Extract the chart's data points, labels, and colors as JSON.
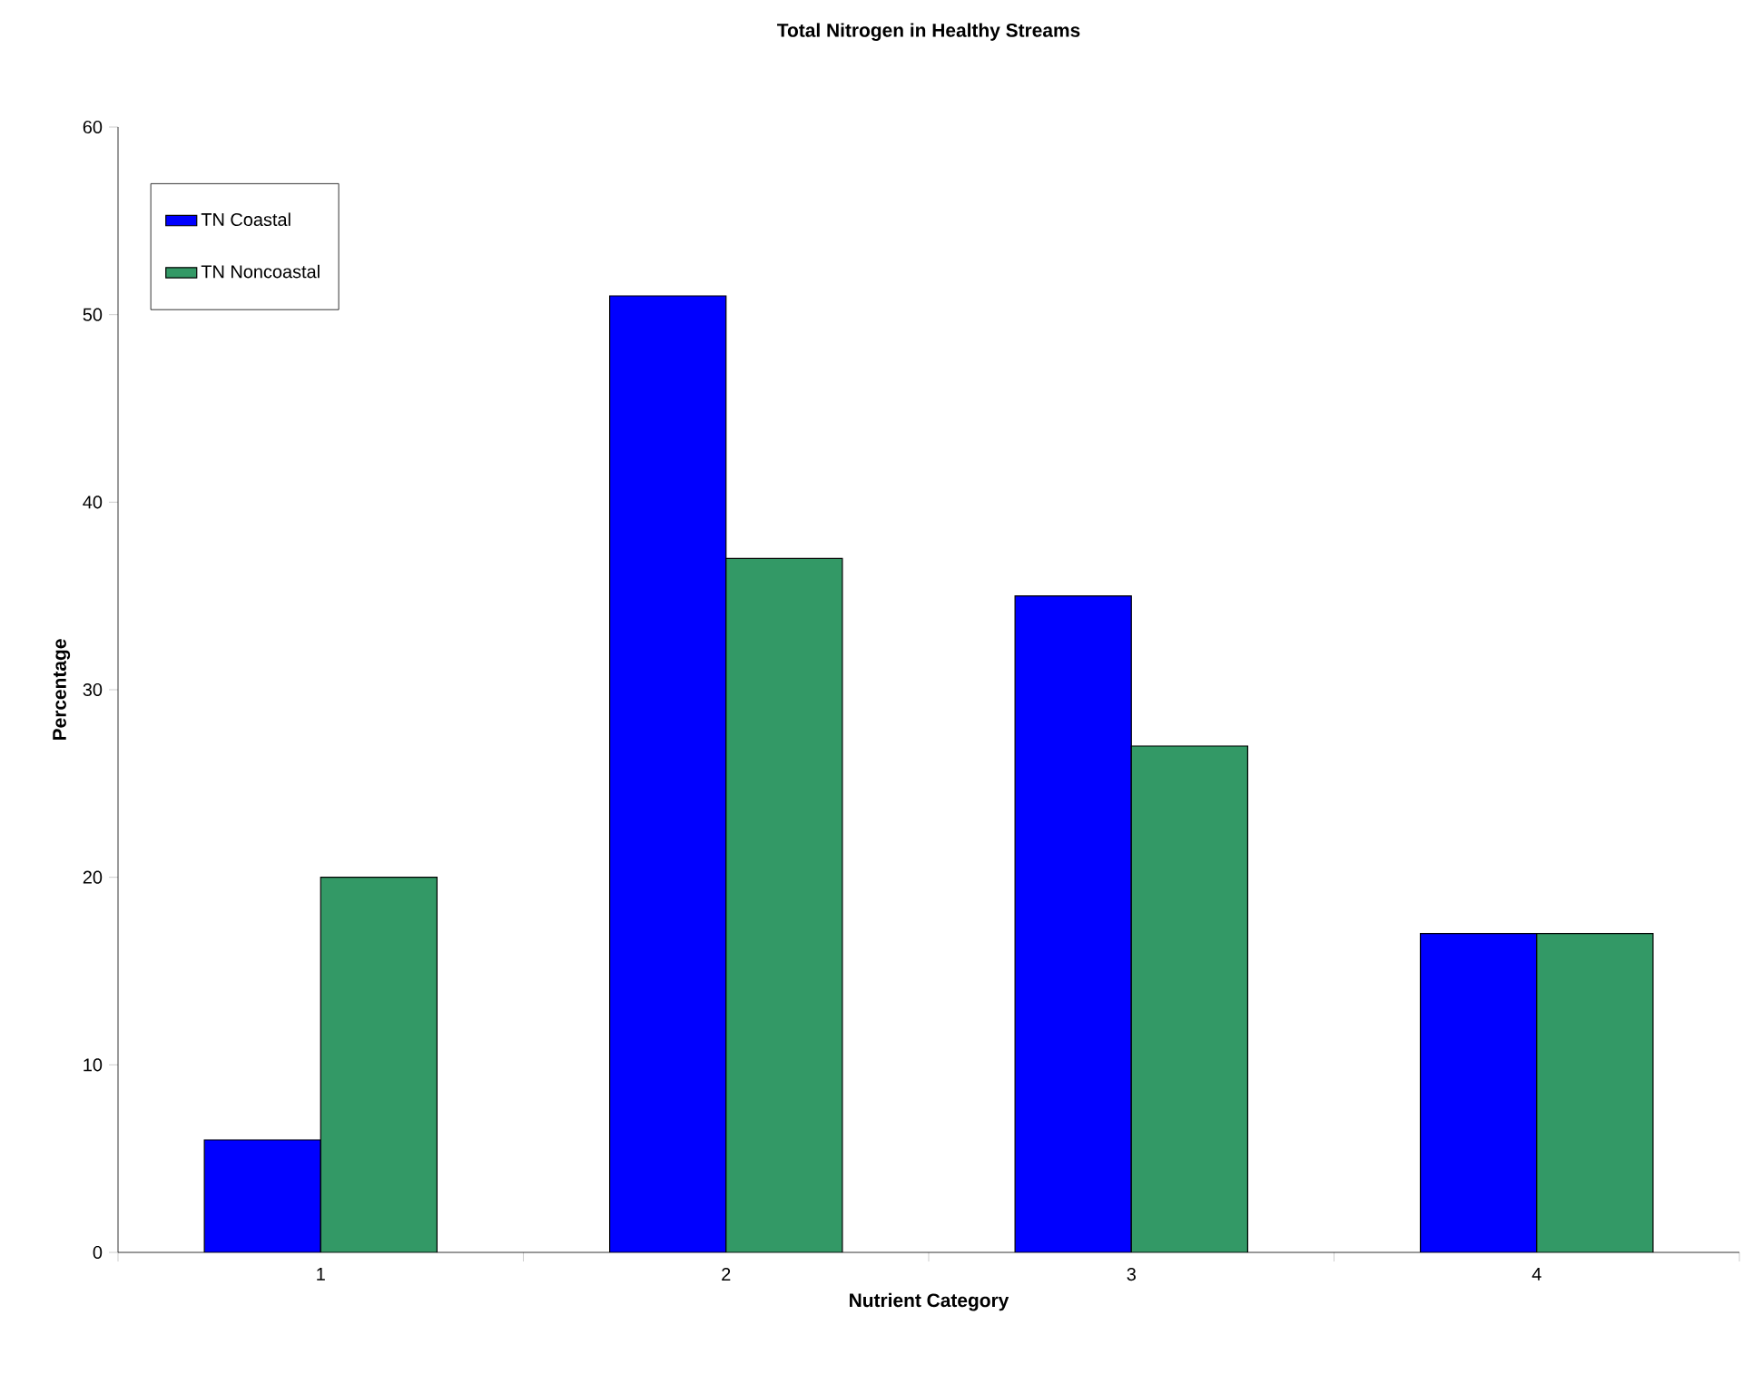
{
  "chart_data": {
    "type": "bar",
    "title": "Total Nitrogen in Healthy Streams",
    "xlabel": "Nutrient Category",
    "ylabel": "Percentage",
    "categories": [
      "1",
      "2",
      "3",
      "4"
    ],
    "series": [
      {
        "name": "TN Coastal",
        "color": "#0000ff",
        "values": [
          6,
          51,
          35,
          17
        ]
      },
      {
        "name": "TN Noncoastal",
        "color": "#339966",
        "values": [
          20,
          37,
          27,
          17
        ]
      }
    ],
    "ylim": [
      0,
      60
    ],
    "yticks": [
      0,
      10,
      20,
      30,
      40,
      50,
      60
    ],
    "legend": "top left"
  }
}
